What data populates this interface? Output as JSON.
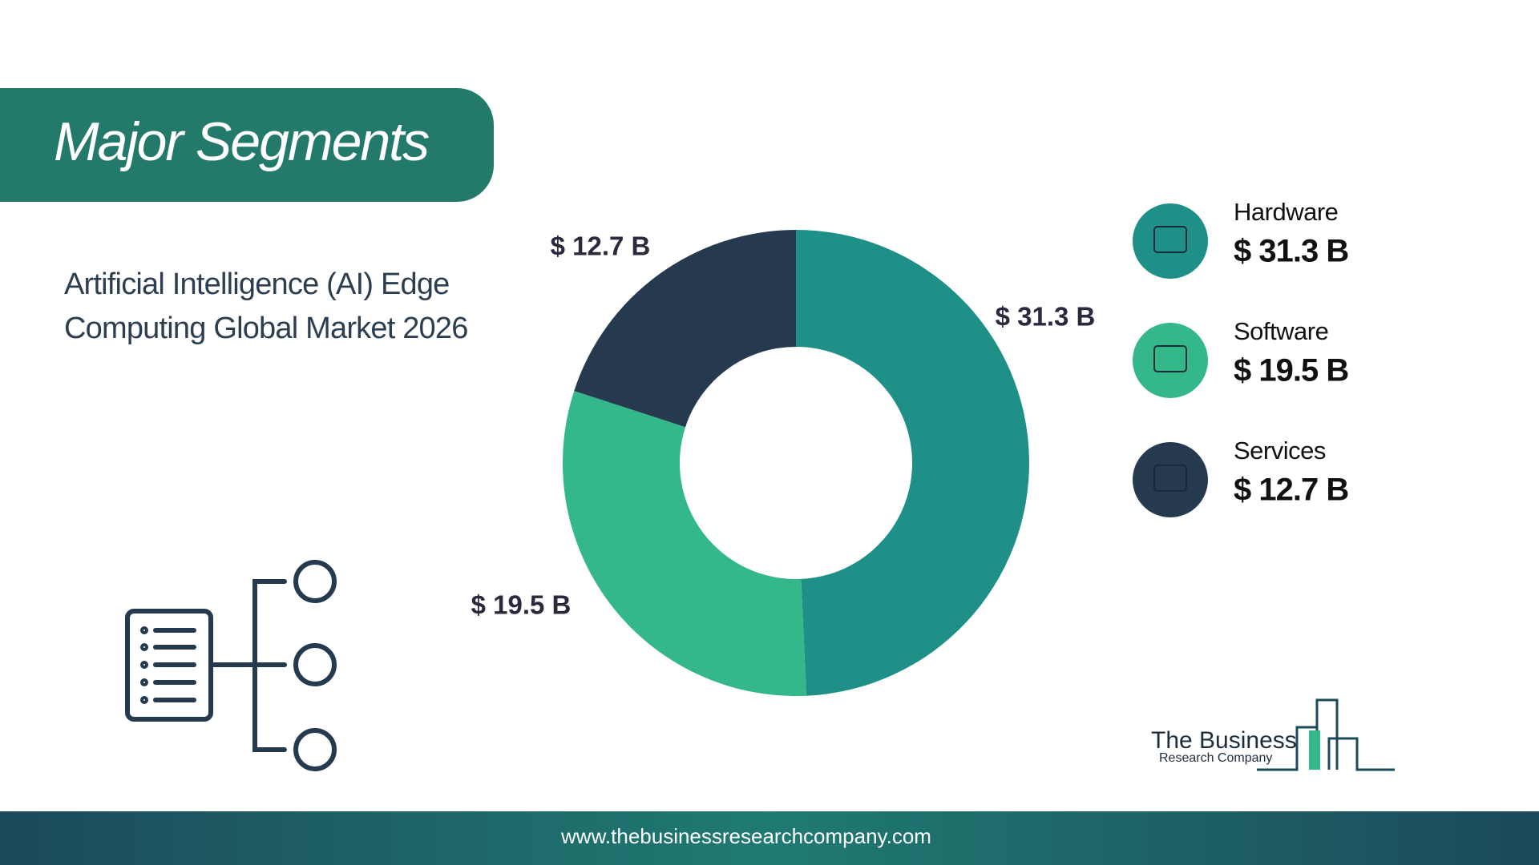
{
  "chart_data": {
    "type": "donut",
    "title": "Major Segments",
    "subtitle": "Artificial Intelligence (AI) Edge Computing Global Market 2026",
    "categories": [
      "Hardware",
      "Software",
      "Services"
    ],
    "values": [
      31.3,
      19.5,
      12.7
    ],
    "value_labels": [
      "$ 31.3 B",
      "$ 19.5 B",
      "$ 12.7 B"
    ],
    "colors": [
      "#1e9088",
      "#34b88a",
      "#253a4f"
    ],
    "legend": "right"
  },
  "logo": {
    "line1": "The Business",
    "line2": "Research Company"
  },
  "footer": {
    "url": "www.thebusinessresearchcompany.com"
  }
}
